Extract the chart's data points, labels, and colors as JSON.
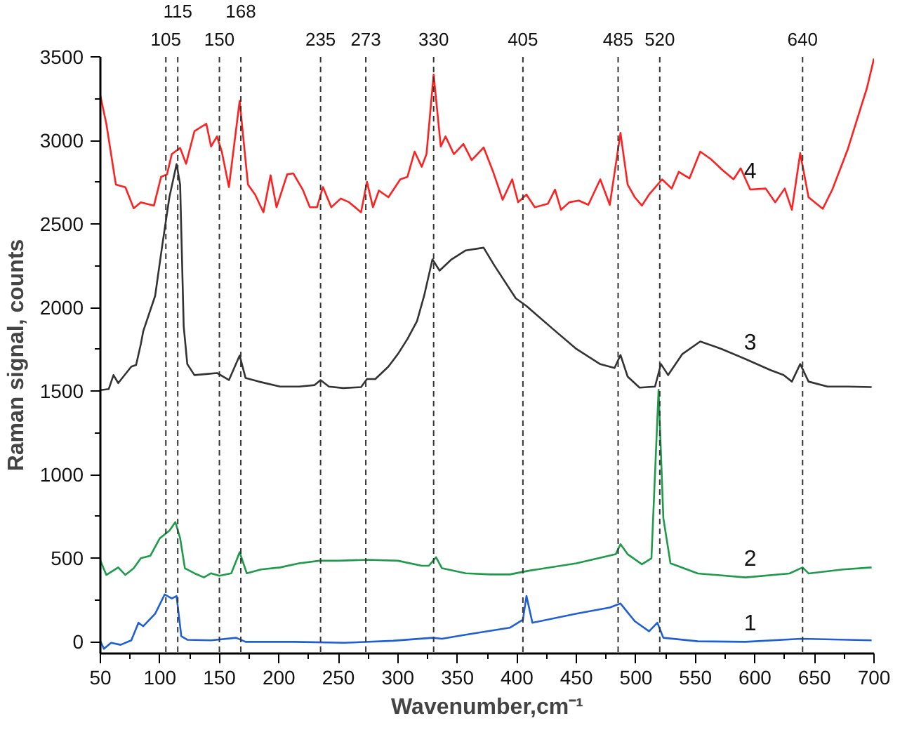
{
  "chart_data": {
    "type": "line",
    "xlabel": "Wavenumber,cm⁻¹",
    "ylabel": "Raman signal, counts",
    "xlim": [
      50,
      700
    ],
    "ylim": [
      -70,
      3500
    ],
    "xticks": [
      50,
      100,
      150,
      200,
      250,
      300,
      350,
      400,
      450,
      500,
      550,
      600,
      650,
      700
    ],
    "yticks": [
      0,
      500,
      1000,
      1500,
      2000,
      2500,
      3000,
      3500
    ],
    "grid": false,
    "legend": false,
    "marker": "none",
    "line_style": "solid",
    "series": [
      {
        "name": "1",
        "color": "#1f5fd6",
        "x": [
          50,
          53,
          59,
          67,
          76,
          82,
          86,
          96,
          104,
          110,
          114,
          118,
          123,
          143,
          164,
          172,
          213,
          255,
          296,
          329,
          337,
          357,
          394,
          405,
          408,
          413,
          450,
          478,
          487,
          499,
          511,
          518,
          523,
          552,
          592,
          639,
          698
        ],
        "values": [
          3,
          -42,
          -6,
          -18,
          9,
          114,
          93,
          168,
          283,
          259,
          274,
          33,
          12,
          9,
          24,
          0,
          0,
          -6,
          6,
          24,
          18,
          42,
          84,
          132,
          274,
          114,
          168,
          205,
          229,
          123,
          63,
          114,
          24,
          3,
          0,
          18,
          9
        ]
      },
      {
        "name": "2",
        "color": "#1e9a4a",
        "x": [
          50,
          55,
          65,
          71,
          78,
          84,
          92,
          100,
          108,
          113,
          117,
          121,
          129,
          137,
          143,
          150,
          160,
          167,
          173,
          185,
          201,
          217,
          234,
          250,
          275,
          300,
          320,
          326,
          332,
          337,
          357,
          378,
          394,
          409,
          450,
          483,
          487,
          493,
          505,
          513,
          519,
          523,
          529,
          552,
          592,
          629,
          640,
          645,
          674,
          698
        ],
        "values": [
          485,
          400,
          445,
          400,
          440,
          500,
          515,
          620,
          665,
          716,
          620,
          440,
          410,
          385,
          410,
          395,
          410,
          536,
          410,
          433,
          445,
          470,
          485,
          485,
          491,
          485,
          455,
          455,
          506,
          440,
          410,
          403,
          403,
          424,
          470,
          524,
          584,
          524,
          464,
          500,
          1508,
          740,
          470,
          409,
          385,
          409,
          445,
          409,
          433,
          445
        ]
      },
      {
        "name": "3",
        "color": "#333333",
        "x": [
          50,
          57,
          61,
          65,
          76,
          80,
          84,
          86,
          96,
          102,
          108,
          114,
          117,
          120,
          123,
          129,
          139,
          148,
          158,
          167,
          172,
          183,
          201,
          217,
          230,
          235,
          242,
          254,
          269,
          274,
          281,
          292,
          300,
          308,
          316,
          322,
          329,
          335,
          345,
          357,
          372,
          381,
          399,
          408,
          430,
          450,
          470,
          482,
          487,
          493,
          503,
          516,
          521,
          527,
          539,
          554,
          572,
          592,
          613,
          624,
          631,
          638,
          645,
          661,
          678,
          698
        ],
        "values": [
          1506,
          1512,
          1596,
          1548,
          1647,
          1656,
          1782,
          1858,
          2070,
          2373,
          2661,
          2858,
          2736,
          1888,
          1662,
          1596,
          1602,
          1608,
          1566,
          1713,
          1578,
          1557,
          1527,
          1527,
          1536,
          1566,
          1527,
          1518,
          1524,
          1572,
          1572,
          1647,
          1722,
          1812,
          1918,
          2070,
          2288,
          2221,
          2288,
          2342,
          2358,
          2252,
          2055,
          2009,
          1873,
          1752,
          1661,
          1638,
          1716,
          1587,
          1521,
          1527,
          1662,
          1596,
          1722,
          1797,
          1752,
          1692,
          1626,
          1596,
          1557,
          1662,
          1557,
          1527,
          1527,
          1524
        ]
      },
      {
        "name": "4",
        "color": "#ff2020",
        "x": [
          50,
          55,
          63,
          71,
          78,
          84,
          95,
          101,
          106,
          110,
          117,
          122,
          129,
          139,
          143,
          148,
          152,
          158,
          167,
          174,
          180,
          187,
          193,
          198,
          207,
          212,
          220,
          226,
          232,
          237,
          244,
          252,
          259,
          269,
          274,
          279,
          284,
          292,
          302,
          308,
          314,
          320,
          324,
          330,
          336,
          340,
          347,
          355,
          362,
          372,
          380,
          388,
          396,
          401,
          408,
          415,
          426,
          432,
          437,
          444,
          452,
          460,
          470,
          478,
          487,
          493,
          499,
          505,
          511,
          522,
          530,
          536,
          545,
          554,
          563,
          572,
          582,
          588,
          596,
          609,
          617,
          625,
          631,
          638,
          645,
          657,
          665,
          678,
          688,
          694,
          700
        ],
        "values": [
          3267,
          3100,
          2736,
          2720,
          2594,
          2630,
          2610,
          2782,
          2797,
          2918,
          2955,
          2860,
          3055,
          3100,
          2964,
          3024,
          2933,
          2721,
          3236,
          2736,
          2676,
          2570,
          2791,
          2600,
          2797,
          2803,
          2706,
          2600,
          2600,
          2721,
          2600,
          2652,
          2630,
          2570,
          2752,
          2600,
          2700,
          2660,
          2767,
          2782,
          2933,
          2842,
          2918,
          3394,
          2964,
          3024,
          2918,
          2979,
          2882,
          2958,
          2812,
          2645,
          2767,
          2630,
          2676,
          2600,
          2621,
          2706,
          2585,
          2630,
          2640,
          2615,
          2767,
          2615,
          3045,
          2736,
          2660,
          2610,
          2676,
          2767,
          2712,
          2812,
          2773,
          2933,
          2888,
          2827,
          2767,
          2833,
          2706,
          2712,
          2630,
          2712,
          2585,
          2924,
          2660,
          2591,
          2706,
          2948,
          3176,
          3312,
          3490
        ]
      }
    ],
    "ref_lines": [
      {
        "axis": "x",
        "value": 105,
        "label": "105",
        "color": "#333333",
        "line_style": "dashed"
      },
      {
        "axis": "x",
        "value": 115,
        "label": "115",
        "color": "#333333",
        "line_style": "dashed"
      },
      {
        "axis": "x",
        "value": 150,
        "label": "150",
        "color": "#333333",
        "line_style": "dashed"
      },
      {
        "axis": "x",
        "value": 168,
        "label": "168",
        "color": "#333333",
        "line_style": "dashed"
      },
      {
        "axis": "x",
        "value": 235,
        "label": "235",
        "color": "#333333",
        "line_style": "dashed"
      },
      {
        "axis": "x",
        "value": 273,
        "label": "273",
        "color": "#333333",
        "line_style": "dashed"
      },
      {
        "axis": "x",
        "value": 330,
        "label": "330",
        "color": "#333333",
        "line_style": "dashed"
      },
      {
        "axis": "x",
        "value": 405,
        "label": "405",
        "color": "#333333",
        "line_style": "dashed"
      },
      {
        "axis": "x",
        "value": 485,
        "label": "485",
        "color": "#333333",
        "line_style": "dashed"
      },
      {
        "axis": "x",
        "value": 520,
        "label": "520",
        "color": "#333333",
        "line_style": "dashed"
      },
      {
        "axis": "x",
        "value": 640,
        "label": "640",
        "color": "#333333",
        "line_style": "dashed"
      }
    ]
  }
}
